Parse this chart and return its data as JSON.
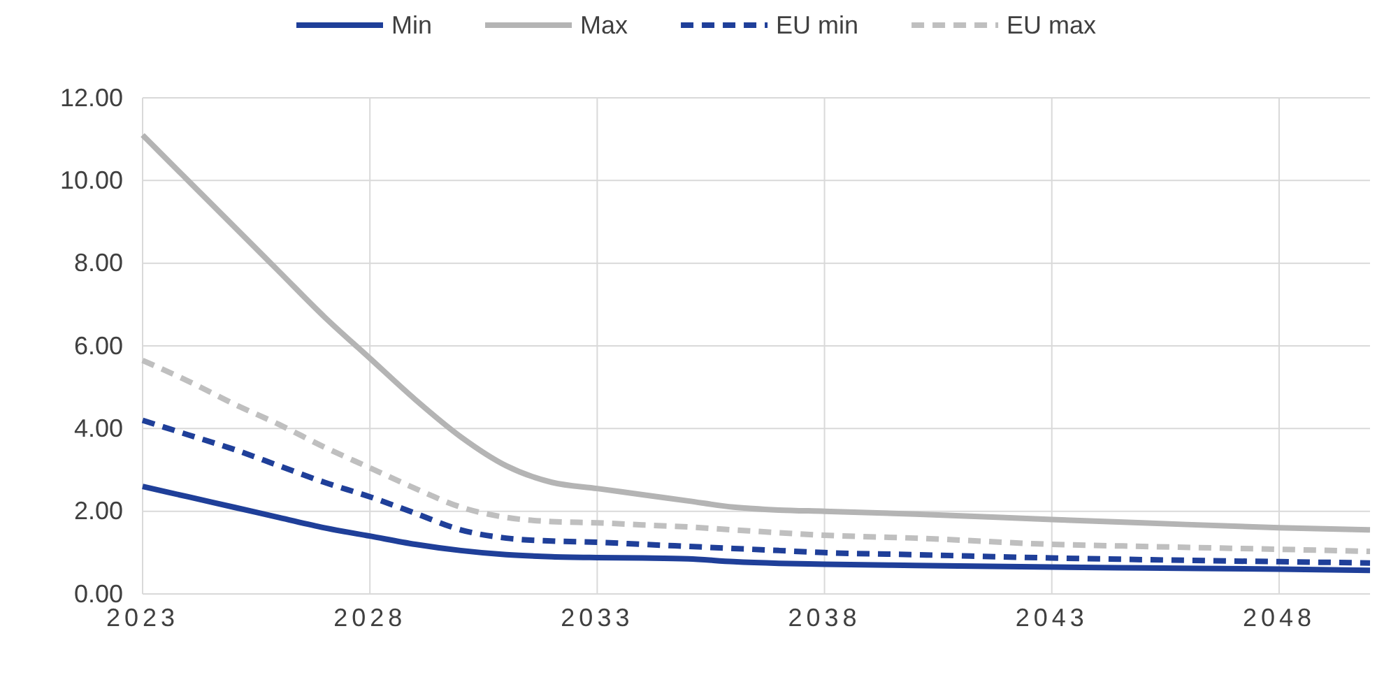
{
  "chart_data": {
    "type": "line",
    "legend": "top",
    "grid": true,
    "xlim": [
      2023,
      2050
    ],
    "xticks": [
      2023,
      2028,
      2033,
      2038,
      2043,
      2048
    ],
    "ylim": [
      0,
      12
    ],
    "yticks": [
      {
        "value": 0,
        "label": "0.00"
      },
      {
        "value": 2,
        "label": "2.00"
      },
      {
        "value": 4,
        "label": "4.00"
      },
      {
        "value": 6,
        "label": "6.00"
      },
      {
        "value": 8,
        "label": "8.00"
      },
      {
        "value": 10,
        "label": "10.00"
      },
      {
        "value": 12,
        "label": "12.00"
      }
    ],
    "x": [
      2023,
      2024,
      2025,
      2026,
      2027,
      2028,
      2029,
      2030,
      2031,
      2032,
      2033,
      2034,
      2035,
      2036,
      2037,
      2038,
      2040,
      2043,
      2045,
      2048,
      2050
    ],
    "series": [
      {
        "name": "Min",
        "color": "#1f3f99",
        "line_style": "solid",
        "values": [
          2.6,
          2.35,
          2.1,
          1.85,
          1.6,
          1.4,
          1.2,
          1.05,
          0.95,
          0.9,
          0.88,
          0.87,
          0.85,
          0.78,
          0.74,
          0.72,
          0.69,
          0.65,
          0.63,
          0.6,
          0.57
        ]
      },
      {
        "name": "Max",
        "color": "#b4b4b4",
        "line_style": "solid",
        "values": [
          11.1,
          10.0,
          8.9,
          7.8,
          6.7,
          5.7,
          4.7,
          3.8,
          3.1,
          2.7,
          2.55,
          2.4,
          2.25,
          2.1,
          2.03,
          2.0,
          1.93,
          1.8,
          1.72,
          1.6,
          1.55
        ]
      },
      {
        "name": "EU min",
        "color": "#1f3f99",
        "line_style": "dashed",
        "values": [
          4.2,
          3.85,
          3.5,
          3.1,
          2.7,
          2.35,
          1.95,
          1.55,
          1.35,
          1.28,
          1.25,
          1.2,
          1.15,
          1.1,
          1.05,
          1.0,
          0.95,
          0.87,
          0.83,
          0.78,
          0.75
        ]
      },
      {
        "name": "EU max",
        "color": "#bfbfbf",
        "line_style": "dashed",
        "values": [
          5.65,
          5.15,
          4.6,
          4.1,
          3.55,
          3.05,
          2.55,
          2.1,
          1.85,
          1.75,
          1.72,
          1.67,
          1.62,
          1.55,
          1.48,
          1.42,
          1.35,
          1.2,
          1.15,
          1.08,
          1.03
        ]
      }
    ]
  }
}
